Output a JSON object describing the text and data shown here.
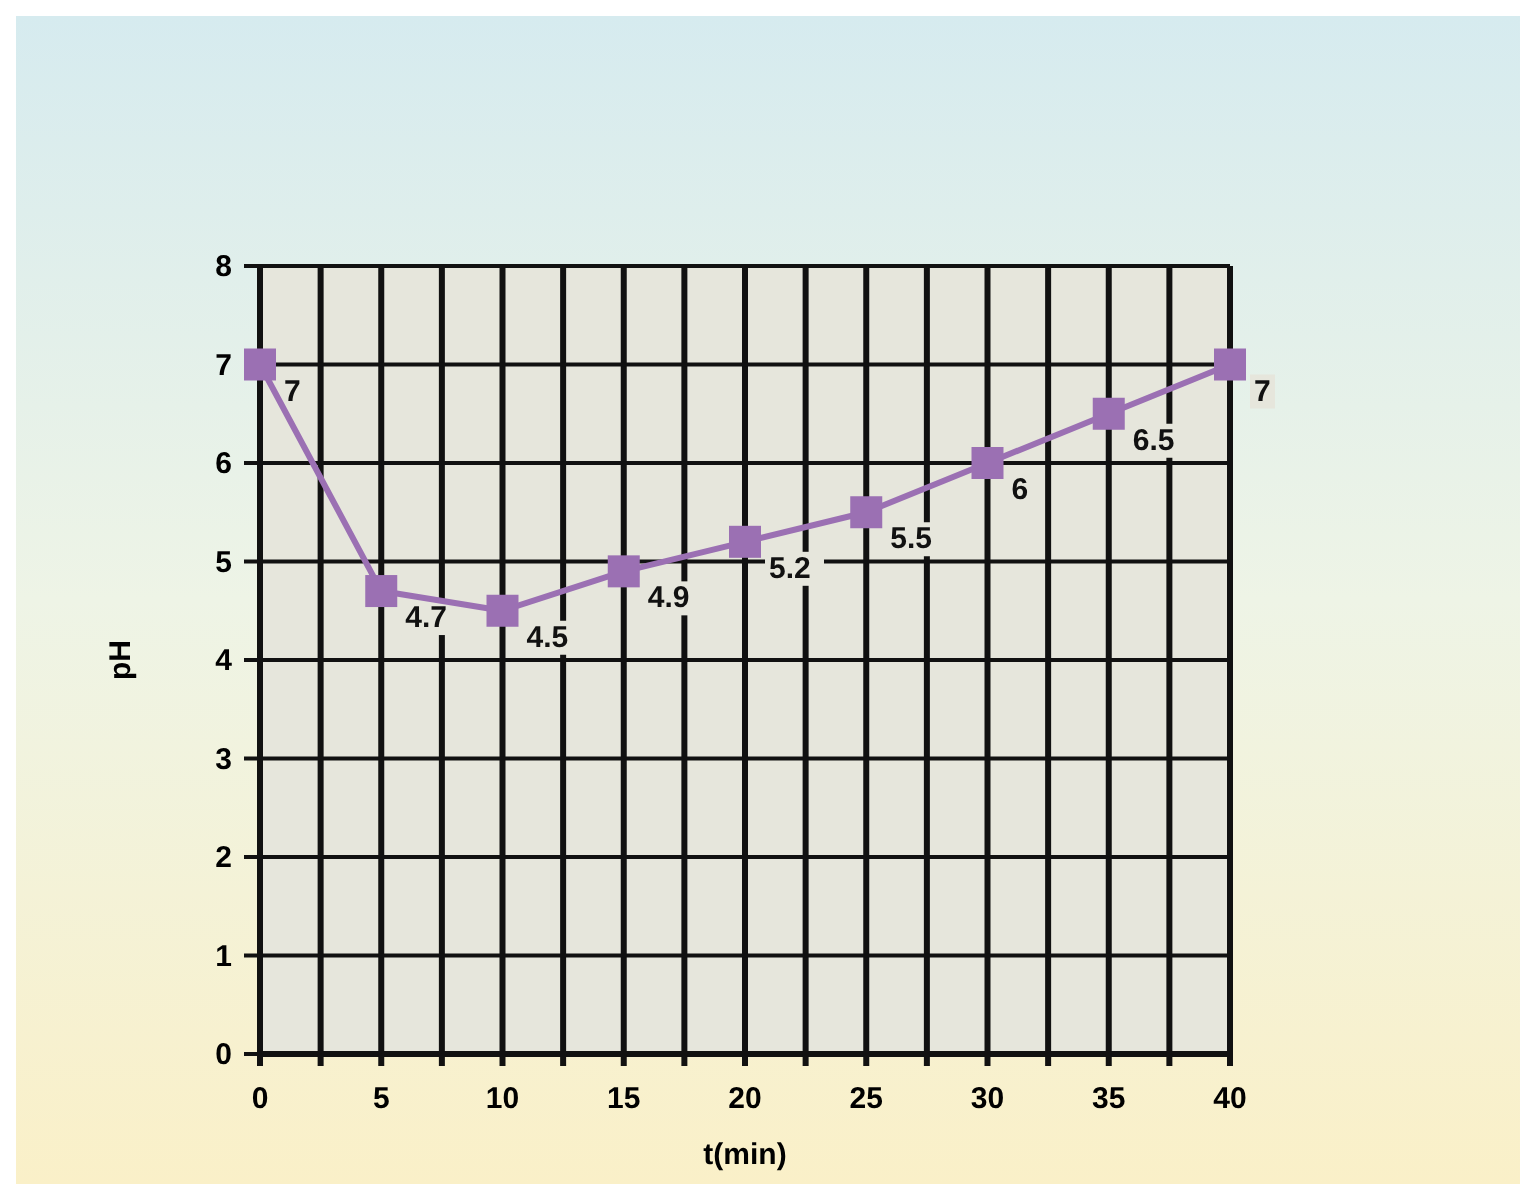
{
  "chart_data": {
    "type": "line",
    "xlabel": "t(min)",
    "ylabel": "pH",
    "x": [
      0,
      5,
      10,
      15,
      20,
      25,
      30,
      35,
      40
    ],
    "series": [
      {
        "color": "#9b70b3",
        "values": [
          7,
          4.7,
          4.5,
          4.9,
          5.2,
          5.5,
          6,
          6.5,
          7
        ]
      }
    ],
    "xlim": [
      0,
      40
    ],
    "xticks": [
      0,
      {
        "value": 2.5,
        "label": null
      },
      5,
      {
        "value": 7.5,
        "label": null
      },
      10,
      {
        "value": 12.5,
        "label": null
      },
      15,
      {
        "value": 17.5,
        "label": null
      },
      20,
      {
        "value": 22.5,
        "label": null
      },
      25,
      {
        "value": 27.5,
        "label": null
      },
      30,
      {
        "value": 32.5,
        "label": null
      },
      35,
      {
        "value": 37.5,
        "label": null
      },
      40
    ],
    "ylim": [
      0,
      8
    ],
    "yticks": [
      0,
      1,
      2,
      3,
      4,
      5,
      6,
      7,
      8
    ],
    "grid": true,
    "marker": "square",
    "line_style": "solid",
    "data_labels": true
  }
}
